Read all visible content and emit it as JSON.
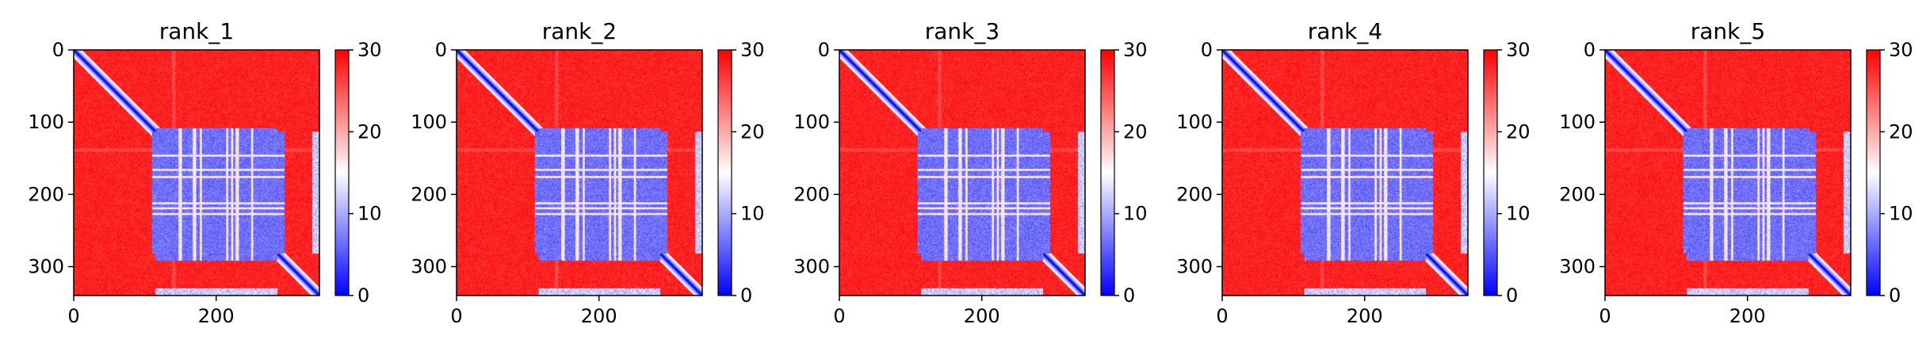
{
  "chart_data": [
    {
      "type": "heatmap",
      "title": "rank_1",
      "xticks": [
        0,
        200
      ],
      "yticks": [
        0,
        100,
        200,
        300
      ],
      "xlim": [
        0,
        345
      ],
      "ylim": [
        340,
        0
      ],
      "colorbar": {
        "ticks": [
          0,
          10,
          20,
          30
        ],
        "range": [
          0,
          30
        ],
        "colormap": "bwr"
      },
      "size": 345,
      "blue_block": {
        "rows": [
          115,
          285
        ],
        "cols": [
          110,
          295
        ]
      },
      "blue_stripe_cols": [
        335,
        345
      ]
    },
    {
      "type": "heatmap",
      "title": "rank_2",
      "xticks": [
        0,
        200
      ],
      "yticks": [
        0,
        100,
        200,
        300
      ],
      "xlim": [
        0,
        345
      ],
      "ylim": [
        340,
        0
      ],
      "colorbar": {
        "ticks": [
          0,
          10,
          20,
          30
        ],
        "range": [
          0,
          30
        ],
        "colormap": "bwr"
      },
      "size": 345,
      "blue_block": {
        "rows": [
          115,
          285
        ],
        "cols": [
          110,
          295
        ]
      },
      "blue_stripe_cols": [
        335,
        345
      ]
    },
    {
      "type": "heatmap",
      "title": "rank_3",
      "xticks": [
        0,
        200
      ],
      "yticks": [
        0,
        100,
        200,
        300
      ],
      "xlim": [
        0,
        345
      ],
      "ylim": [
        340,
        0
      ],
      "colorbar": {
        "ticks": [
          0,
          10,
          20,
          30
        ],
        "range": [
          0,
          30
        ],
        "colormap": "bwr"
      },
      "size": 345,
      "blue_block": {
        "rows": [
          115,
          285
        ],
        "cols": [
          110,
          295
        ]
      },
      "blue_stripe_cols": [
        335,
        345
      ]
    },
    {
      "type": "heatmap",
      "title": "rank_4",
      "xticks": [
        0,
        200
      ],
      "yticks": [
        0,
        100,
        200,
        300
      ],
      "xlim": [
        0,
        345
      ],
      "ylim": [
        340,
        0
      ],
      "colorbar": {
        "ticks": [
          0,
          10,
          20,
          30
        ],
        "range": [
          0,
          30
        ],
        "colormap": "bwr"
      },
      "size": 345,
      "blue_block": {
        "rows": [
          115,
          285
        ],
        "cols": [
          110,
          295
        ]
      },
      "blue_stripe_cols": [
        335,
        345
      ]
    },
    {
      "type": "heatmap",
      "title": "rank_5",
      "xticks": [
        0,
        200
      ],
      "yticks": [
        0,
        100,
        200,
        300
      ],
      "xlim": [
        0,
        345
      ],
      "ylim": [
        340,
        0
      ],
      "colorbar": {
        "ticks": [
          0,
          10,
          20,
          30
        ],
        "range": [
          0,
          30
        ],
        "colormap": "bwr"
      },
      "size": 345,
      "blue_block": {
        "rows": [
          115,
          285
        ],
        "cols": [
          110,
          295
        ]
      },
      "blue_stripe_cols": [
        335,
        345
      ]
    }
  ],
  "colors": {
    "high": "#ff0000",
    "mid": "#ffffff",
    "low": "#0000ff",
    "axis": "#000000"
  }
}
